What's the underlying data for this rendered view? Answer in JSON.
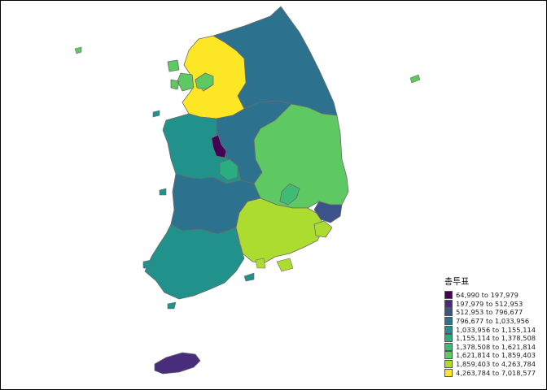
{
  "legend": {
    "title": "총투표",
    "items": [
      {
        "label": "64,990 to 197,979",
        "color": "#440154"
      },
      {
        "label": "197,979 to 512,953",
        "color": "#472d7b"
      },
      {
        "label": "512,953 to 796,677",
        "color": "#3b528b"
      },
      {
        "label": "796,677 to 1,033,956",
        "color": "#2c728e"
      },
      {
        "label": "1,033,956 to 1,155,114",
        "color": "#21918c"
      },
      {
        "label": "1,155,114 to 1,378,508",
        "color": "#28ae80"
      },
      {
        "label": "1,378,508 to 1,621,814",
        "color": "#3fbc73"
      },
      {
        "label": "1,621,814 to 1,859,403",
        "color": "#5ec962"
      },
      {
        "label": "1,859,403 to 4,263,784",
        "color": "#addc30"
      },
      {
        "label": "4,263,784 to 7,018,577",
        "color": "#fde725"
      }
    ]
  },
  "map_data": {
    "regions": [
      {
        "name": "Gangwon",
        "class_index": 3
      },
      {
        "name": "Gyeonggi",
        "class_index": 9
      },
      {
        "name": "Incheon",
        "class_index": 7
      },
      {
        "name": "Seoul",
        "class_index": 7
      },
      {
        "name": "Chungbuk",
        "class_index": 3
      },
      {
        "name": "Chungnam",
        "class_index": 4
      },
      {
        "name": "Sejong",
        "class_index": 0
      },
      {
        "name": "Daejeon",
        "class_index": 5
      },
      {
        "name": "Gyeongbuk",
        "class_index": 7
      },
      {
        "name": "Daegu",
        "class_index": 6
      },
      {
        "name": "Jeonbuk",
        "class_index": 3
      },
      {
        "name": "Gwangju",
        "class_index": 2
      },
      {
        "name": "Jeonnam",
        "class_index": 4
      },
      {
        "name": "Gyeongnam",
        "class_index": 8
      },
      {
        "name": "Ulsan",
        "class_index": 2
      },
      {
        "name": "Busan",
        "class_index": 8
      },
      {
        "name": "Jeju",
        "class_index": 1
      }
    ]
  }
}
